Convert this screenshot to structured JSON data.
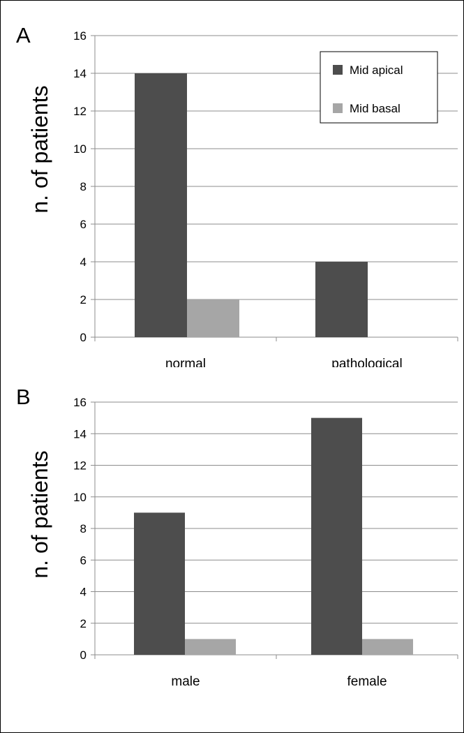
{
  "chart_data": [
    {
      "type": "bar",
      "panel_label": "A",
      "categories": [
        "normal",
        "pathological"
      ],
      "series": [
        {
          "name": "Mid apical",
          "values": [
            14,
            4
          ],
          "color": "#4d4d4d"
        },
        {
          "name": "Mid basal",
          "values": [
            2,
            0
          ],
          "color": "#a6a6a6"
        }
      ],
      "ylabel": "n. of patients",
      "ylim": [
        0,
        16
      ],
      "yticks": [
        "0",
        "2",
        "4",
        "6",
        "8",
        "10",
        "12",
        "14",
        "16"
      ],
      "legend": "top-right",
      "grid": true
    },
    {
      "type": "bar",
      "panel_label": "B",
      "categories": [
        "male",
        "female"
      ],
      "series": [
        {
          "name": "Mid apical",
          "values": [
            9,
            15
          ],
          "color": "#4d4d4d"
        },
        {
          "name": "Mid basal",
          "values": [
            1,
            1
          ],
          "color": "#a6a6a6"
        }
      ],
      "ylabel": "n. of patients",
      "ylim": [
        0,
        16
      ],
      "yticks": [
        "0",
        "2",
        "4",
        "6",
        "8",
        "10",
        "12",
        "14",
        "16"
      ],
      "grid": true
    }
  ]
}
